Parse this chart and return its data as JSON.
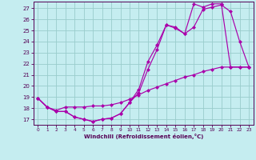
{
  "xlabel": "Windchill (Refroidissement éolien,°C)",
  "xlim": [
    -0.5,
    23.5
  ],
  "ylim": [
    16.5,
    27.6
  ],
  "xticks": [
    0,
    1,
    2,
    3,
    4,
    5,
    6,
    7,
    8,
    9,
    10,
    11,
    12,
    13,
    14,
    15,
    16,
    17,
    18,
    19,
    20,
    21,
    22,
    23
  ],
  "yticks": [
    17,
    18,
    19,
    20,
    21,
    22,
    23,
    24,
    25,
    26,
    27
  ],
  "bg_color": "#c5edf0",
  "line_color": "#aa00aa",
  "grid_color": "#99cccc",
  "series1_x": [
    0,
    1,
    2,
    3,
    4,
    5,
    6,
    7,
    8,
    9,
    10,
    11,
    12,
    13,
    14,
    15,
    16,
    17,
    18,
    19,
    20,
    21,
    22,
    23
  ],
  "series1_y": [
    18.9,
    18.1,
    17.7,
    17.7,
    17.2,
    17.0,
    16.8,
    17.0,
    17.1,
    17.5,
    18.5,
    19.4,
    21.5,
    23.3,
    25.5,
    25.3,
    24.7,
    25.3,
    26.9,
    27.1,
    27.3,
    26.7,
    24.0,
    21.7
  ],
  "series2_x": [
    0,
    1,
    2,
    3,
    4,
    5,
    6,
    7,
    8,
    9,
    10,
    11,
    12,
    13,
    14,
    15,
    16,
    17,
    18,
    19,
    20,
    21,
    22,
    23
  ],
  "series2_y": [
    18.9,
    18.1,
    17.7,
    17.7,
    17.2,
    17.0,
    16.8,
    17.0,
    17.1,
    17.5,
    18.5,
    19.7,
    22.2,
    23.7,
    25.5,
    25.2,
    24.7,
    27.4,
    27.1,
    27.4,
    27.4,
    21.7,
    21.7,
    21.7
  ],
  "series3_x": [
    0,
    1,
    2,
    3,
    4,
    5,
    6,
    7,
    8,
    9,
    10,
    11,
    12,
    13,
    14,
    15,
    16,
    17,
    18,
    19,
    20,
    21,
    22,
    23
  ],
  "series3_y": [
    18.9,
    18.1,
    17.8,
    18.1,
    18.1,
    18.1,
    18.2,
    18.2,
    18.3,
    18.5,
    18.8,
    19.2,
    19.6,
    19.9,
    20.2,
    20.5,
    20.8,
    21.0,
    21.3,
    21.5,
    21.7,
    21.7,
    21.7,
    21.7
  ]
}
